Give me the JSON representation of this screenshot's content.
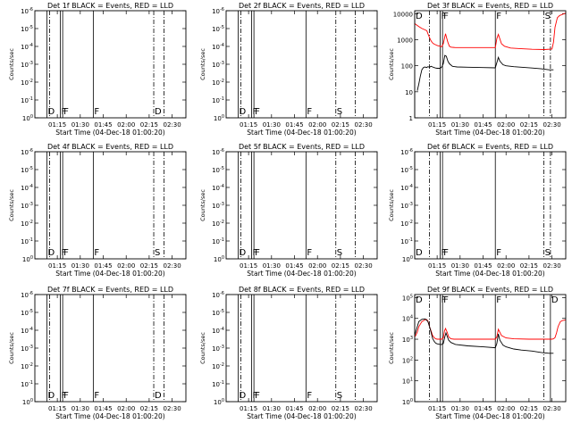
{
  "chart_data": [
    {
      "type": "line",
      "title": "Det 1f BLACK = Events, RED = LLD",
      "xlabel": "Start Time (04-Dec-18 01:00:20)",
      "ylabel": "Counts/sec",
      "log_y": true,
      "x_range": [
        "01:00:20",
        "02:39:00"
      ],
      "x_ticks": [
        "01:15",
        "01:30",
        "01:45",
        "02:00",
        "02:15",
        "02:30"
      ],
      "y_ticks": [
        "10^0",
        "10^-1",
        "10^-2",
        "10^-3",
        "10^-4",
        "10^-5",
        "10^-6"
      ],
      "grid": false,
      "series": [],
      "annotations": [
        {
          "label": "D",
          "x": "01:08:15",
          "line": "solid"
        },
        {
          "label": "",
          "x": "01:10:00",
          "line": "dashdot"
        },
        {
          "label": "F",
          "x": "01:17:00",
          "line": "solid"
        },
        {
          "label": "F",
          "x": "01:18:30",
          "line": "solid"
        },
        {
          "label": "F",
          "x": "01:38:30",
          "line": "solid"
        },
        {
          "label": "D",
          "x": "02:18:00",
          "line": "dashdot"
        },
        {
          "label": "",
          "x": "02:24:45",
          "line": "dashdot"
        }
      ]
    },
    {
      "type": "line",
      "title": "Det 2f BLACK = Events, RED = LLD",
      "xlabel": "Start Time (04-Dec-18 01:00:20)",
      "ylabel": "Counts/sec",
      "log_y": true,
      "x_range": [
        "01:00:20",
        "02:39:00"
      ],
      "x_ticks": [
        "01:15",
        "01:30",
        "01:45",
        "02:00",
        "02:15",
        "02:30"
      ],
      "y_ticks": [
        "10^0",
        "10^-1",
        "10^-2",
        "10^-3",
        "10^-4",
        "10^-5",
        "10^-6"
      ],
      "grid": false,
      "series": [],
      "annotations": [
        {
          "label": "D",
          "x": "01:08:15",
          "line": "solid"
        },
        {
          "label": "",
          "x": "01:10:00",
          "line": "dashdot"
        },
        {
          "label": "F",
          "x": "01:17:00",
          "line": "solid"
        },
        {
          "label": "F",
          "x": "01:18:30",
          "line": "solid"
        },
        {
          "label": "F",
          "x": "01:52:30",
          "line": "solid"
        },
        {
          "label": "S",
          "x": "02:12:00",
          "line": "dashdot"
        },
        {
          "label": "",
          "x": "02:24:45",
          "line": "dashdot"
        }
      ]
    },
    {
      "type": "line",
      "title": "Det 3f BLACK = Events, RED = LLD",
      "xlabel": "Start Time (04-Dec-18 01:00:20)",
      "ylabel": "Counts/sec",
      "log_y": true,
      "x_range": [
        "01:00:20",
        "02:39:00"
      ],
      "x_ticks": [
        "01:15",
        "01:30",
        "01:45",
        "02:00",
        "02:15",
        "02:30"
      ],
      "y_ticks": [
        "1",
        "10",
        "100",
        "1000",
        "10000"
      ],
      "y_range": [
        1,
        13000
      ],
      "grid": false,
      "series": [
        {
          "color": "#ff0000",
          "x": [
            "01:00:20",
            "01:01:30",
            "01:03:00",
            "01:05:00",
            "01:07:00",
            "01:08:15",
            "01:09:00",
            "01:10:00",
            "01:11:00",
            "01:12:00",
            "01:13:00",
            "01:14:00",
            "01:15:00",
            "01:16:00",
            "01:17:00",
            "01:18:00",
            "01:19:00",
            "01:20:00",
            "01:20:30",
            "01:21:00",
            "01:22:00",
            "01:23:00",
            "01:24:00",
            "01:25:00",
            "01:27:00",
            "01:30:00",
            "01:40:00",
            "01:50:00",
            "01:53:00",
            "01:54:00",
            "01:55:00",
            "01:57:00",
            "01:59:00",
            "02:03:00",
            "02:10:00",
            "02:17:00",
            "02:25:00",
            "02:30:00",
            "02:31:00",
            "02:32:00",
            "02:33:30",
            "02:35:00",
            "02:37:00",
            "02:39:00"
          ],
          "y": [
            4200,
            3700,
            3200,
            2700,
            2400,
            2200,
            1700,
            1200,
            900,
            750,
            680,
            640,
            600,
            580,
            560,
            540,
            700,
            1300,
            1700,
            1300,
            800,
            560,
            520,
            510,
            500,
            500,
            500,
            500,
            500,
            1100,
            1600,
            700,
            560,
            480,
            450,
            430,
            420,
            440,
            800,
            3000,
            7000,
            8500,
            9500,
            10500
          ]
        },
        {
          "color": "#000000",
          "x": [
            "01:02:00",
            "01:03:00",
            "01:04:00",
            "01:05:00",
            "01:06:00",
            "01:07:00",
            "01:08:00",
            "01:09:00",
            "01:10:00",
            "01:11:00",
            "01:12:00",
            "01:13:00",
            "01:14:00",
            "01:15:00",
            "01:16:00",
            "01:17:00",
            "01:18:00",
            "01:19:00",
            "01:20:00",
            "01:21:00",
            "01:22:00",
            "01:23:00",
            "01:25:00",
            "01:28:00",
            "01:35:00",
            "01:45:00",
            "01:53:00",
            "01:54:00",
            "01:55:00",
            "01:56:00",
            "01:58:00",
            "02:00:00",
            "02:05:00",
            "02:10:00",
            "02:17:00",
            "02:23:00",
            "02:28:00",
            "02:31:00"
          ],
          "y": [
            11,
            20,
            40,
            70,
            85,
            90,
            85,
            92,
            88,
            95,
            90,
            85,
            82,
            80,
            80,
            80,
            90,
            120,
            250,
            230,
            150,
            120,
            95,
            90,
            88,
            85,
            83,
            130,
            210,
            150,
            110,
            100,
            92,
            88,
            82,
            76,
            70,
            70
          ]
        }
      ],
      "annotations": [
        {
          "label": "D",
          "x": "01:00:20",
          "line": "solid"
        },
        {
          "label": "",
          "x": "01:10:00",
          "line": "dashdot"
        },
        {
          "label": "F",
          "x": "01:17:00",
          "line": "solid"
        },
        {
          "label": "F",
          "x": "01:18:30",
          "line": "solid"
        },
        {
          "label": "F",
          "x": "01:53:00",
          "line": "solid"
        },
        {
          "label": "S",
          "x": "02:24:45",
          "line": "dashdot"
        },
        {
          "label": "",
          "x": "02:29:00",
          "line": "dashdot"
        }
      ]
    },
    {
      "type": "line",
      "title": "Det 4f BLACK = Events, RED = LLD",
      "xlabel": "Start Time (04-Dec-18 01:00:20)",
      "ylabel": "Counts/sec",
      "log_y": true,
      "x_range": [
        "01:00:20",
        "02:39:00"
      ],
      "x_ticks": [
        "01:15",
        "01:30",
        "01:45",
        "02:00",
        "02:15",
        "02:30"
      ],
      "y_ticks": [
        "10^0",
        "10^-1",
        "10^-2",
        "10^-3",
        "10^-4",
        "10^-5",
        "10^-6"
      ],
      "grid": false,
      "series": [],
      "annotations": [
        {
          "label": "D",
          "x": "01:08:15",
          "line": "solid"
        },
        {
          "label": "",
          "x": "01:10:00",
          "line": "dashdot"
        },
        {
          "label": "F",
          "x": "01:17:00",
          "line": "solid"
        },
        {
          "label": "F",
          "x": "01:18:30",
          "line": "solid"
        },
        {
          "label": "F",
          "x": "01:38:30",
          "line": "solid"
        },
        {
          "label": "S",
          "x": "02:18:00",
          "line": "dashdot"
        },
        {
          "label": "",
          "x": "02:24:45",
          "line": "dashdot"
        }
      ]
    },
    {
      "type": "line",
      "title": "Det 5f BLACK = Events, RED = LLD",
      "xlabel": "Start Time (04-Dec-18 01:00:20)",
      "ylabel": "Counts/sec",
      "log_y": true,
      "x_range": [
        "01:00:20",
        "02:39:00"
      ],
      "x_ticks": [
        "01:15",
        "01:30",
        "01:45",
        "02:00",
        "02:15",
        "02:30"
      ],
      "y_ticks": [
        "10^0",
        "10^-1",
        "10^-2",
        "10^-3",
        "10^-4",
        "10^-5",
        "10^-6"
      ],
      "grid": false,
      "series": [],
      "annotations": [
        {
          "label": "D",
          "x": "01:08:15",
          "line": "solid"
        },
        {
          "label": "",
          "x": "01:10:00",
          "line": "dashdot"
        },
        {
          "label": "F",
          "x": "01:17:00",
          "line": "solid"
        },
        {
          "label": "F",
          "x": "01:18:30",
          "line": "solid"
        },
        {
          "label": "F",
          "x": "01:52:30",
          "line": "solid"
        },
        {
          "label": "S",
          "x": "02:12:00",
          "line": "dashdot"
        },
        {
          "label": "",
          "x": "02:24:45",
          "line": "dashdot"
        }
      ]
    },
    {
      "type": "line",
      "title": "Det 6f BLACK = Events, RED = LLD",
      "xlabel": "Start Time (04-Dec-18 01:00:20)",
      "ylabel": "Counts/sec",
      "log_y": true,
      "x_range": [
        "01:00:20",
        "02:39:00"
      ],
      "x_ticks": [
        "01:15",
        "01:30",
        "01:45",
        "02:00",
        "02:15",
        "02:30"
      ],
      "y_ticks": [
        "10^0",
        "10^-1",
        "10^-2",
        "10^-3",
        "10^-4",
        "10^-5",
        "10^-6"
      ],
      "grid": false,
      "series": [],
      "annotations": [
        {
          "label": "D",
          "x": "01:00:20",
          "line": "solid"
        },
        {
          "label": "",
          "x": "01:10:00",
          "line": "dashdot"
        },
        {
          "label": "F",
          "x": "01:17:00",
          "line": "solid"
        },
        {
          "label": "F",
          "x": "01:18:30",
          "line": "solid"
        },
        {
          "label": "F",
          "x": "01:53:00",
          "line": "solid"
        },
        {
          "label": "S",
          "x": "02:24:45",
          "line": "dashdot"
        },
        {
          "label": "",
          "x": "02:29:00",
          "line": "dashdot"
        }
      ]
    },
    {
      "type": "line",
      "title": "Det 7f BLACK = Events, RED = LLD",
      "xlabel": "Start Time (04-Dec-18 01:00:20)",
      "ylabel": "Counts/sec",
      "log_y": true,
      "x_range": [
        "01:00:20",
        "02:39:00"
      ],
      "x_ticks": [
        "01:15",
        "01:30",
        "01:45",
        "02:00",
        "02:15",
        "02:30"
      ],
      "y_ticks": [
        "10^0",
        "10^-1",
        "10^-2",
        "10^-3",
        "10^-4",
        "10^-5",
        "10^-6"
      ],
      "grid": false,
      "series": [],
      "annotations": [
        {
          "label": "D",
          "x": "01:08:15",
          "line": "solid"
        },
        {
          "label": "",
          "x": "01:10:00",
          "line": "dashdot"
        },
        {
          "label": "F",
          "x": "01:17:00",
          "line": "solid"
        },
        {
          "label": "F",
          "x": "01:18:30",
          "line": "solid"
        },
        {
          "label": "F",
          "x": "01:38:30",
          "line": "solid"
        },
        {
          "label": "D",
          "x": "02:18:00",
          "line": "dashdot"
        },
        {
          "label": "",
          "x": "02:24:45",
          "line": "dashdot"
        }
      ]
    },
    {
      "type": "line",
      "title": "Det 8f BLACK = Events, RED = LLD",
      "xlabel": "Start Time (04-Dec-18 01:00:20)",
      "ylabel": "Counts/sec",
      "log_y": true,
      "x_range": [
        "01:00:20",
        "02:39:00"
      ],
      "x_ticks": [
        "01:15",
        "01:30",
        "01:45",
        "02:00",
        "02:15",
        "02:30"
      ],
      "y_ticks": [
        "10^0",
        "10^-1",
        "10^-2",
        "10^-3",
        "10^-4",
        "10^-5",
        "10^-6"
      ],
      "grid": false,
      "series": [],
      "annotations": [
        {
          "label": "D",
          "x": "01:08:15",
          "line": "solid"
        },
        {
          "label": "",
          "x": "01:10:00",
          "line": "dashdot"
        },
        {
          "label": "F",
          "x": "01:17:00",
          "line": "solid"
        },
        {
          "label": "F",
          "x": "01:18:30",
          "line": "solid"
        },
        {
          "label": "F",
          "x": "01:52:30",
          "line": "solid"
        },
        {
          "label": "S",
          "x": "02:12:00",
          "line": "dashdot"
        },
        {
          "label": "",
          "x": "02:24:45",
          "line": "dashdot"
        }
      ]
    },
    {
      "type": "line",
      "title": "Det 9f BLACK = Events, RED = LLD",
      "xlabel": "Start Time (04-Dec-18 01:00:20)",
      "ylabel": "Counts/sec",
      "log_y": true,
      "x_range": [
        "01:00:20",
        "02:39:00"
      ],
      "x_ticks": [
        "01:15",
        "01:30",
        "01:45",
        "02:00",
        "02:15",
        "02:30"
      ],
      "y_ticks": [
        "10^0",
        "10^1",
        "10^2",
        "10^3",
        "10^4",
        "10^5"
      ],
      "y_range": [
        1,
        140000
      ],
      "grid": false,
      "series": [
        {
          "color": "#ff0000",
          "x": [
            "01:00:20",
            "01:01:00",
            "01:02:00",
            "01:03:00",
            "01:05:00",
            "01:07:00",
            "01:08:00",
            "01:09:00",
            "01:10:00",
            "01:11:00",
            "01:12:00",
            "01:13:00",
            "01:14:00",
            "01:15:00",
            "01:16:00",
            "01:17:00",
            "01:18:00",
            "01:19:00",
            "01:19:45",
            "01:20:30",
            "01:21:30",
            "01:22:30",
            "01:24:00",
            "01:26:00",
            "01:30:00",
            "01:40:00",
            "01:50:00",
            "01:53:00",
            "01:54:00",
            "01:55:00",
            "01:57:00",
            "02:00:00",
            "02:05:00",
            "02:15:00",
            "02:25:00",
            "02:30:00",
            "02:31:00",
            "02:32:00",
            "02:33:00",
            "02:34:00",
            "02:35:30",
            "02:37:00",
            "02:39:00"
          ],
          "y": [
            1300,
            1500,
            2200,
            4000,
            7000,
            8500,
            9000,
            7500,
            4000,
            2500,
            1500,
            1200,
            1050,
            1000,
            1000,
            1000,
            1000,
            1150,
            2500,
            3300,
            2200,
            1300,
            1050,
            1000,
            1000,
            1000,
            1000,
            1000,
            1300,
            3000,
            1500,
            1150,
            1050,
            1000,
            1000,
            1000,
            1050,
            1200,
            2000,
            4000,
            7000,
            8000,
            8500
          ]
        },
        {
          "color": "#000000",
          "x": [
            "01:00:20",
            "01:01:00",
            "01:02:00",
            "01:03:00",
            "01:05:00",
            "01:07:00",
            "01:08:00",
            "01:09:00",
            "01:10:00",
            "01:11:00",
            "01:12:00",
            "01:13:00",
            "01:14:00",
            "01:15:00",
            "01:16:00",
            "01:17:00",
            "01:18:00",
            "01:19:00",
            "01:20:00",
            "01:20:45",
            "01:21:30",
            "01:22:30",
            "01:24:00",
            "01:27:00",
            "01:35:00",
            "01:45:00",
            "01:53:00",
            "01:54:00",
            "01:55:00",
            "01:56:00",
            "01:58:00",
            "02:00:00",
            "02:05:00",
            "02:10:00",
            "02:17:00",
            "02:23:00",
            "02:28:00",
            "02:31:00"
          ],
          "y": [
            1500,
            2200,
            4000,
            7000,
            9000,
            9500,
            8500,
            7000,
            4000,
            2200,
            1100,
            800,
            650,
            600,
            580,
            560,
            560,
            620,
            1300,
            2000,
            1400,
            900,
            700,
            560,
            480,
            430,
            390,
            620,
            1800,
            900,
            520,
            430,
            340,
            300,
            270,
            230,
            210,
            210
          ]
        }
      ],
      "annotations": [
        {
          "label": "D",
          "x": "01:00:20",
          "line": "solid"
        },
        {
          "label": "",
          "x": "01:10:00",
          "line": "dashdot"
        },
        {
          "label": "F",
          "x": "01:17:00",
          "line": "solid"
        },
        {
          "label": "F",
          "x": "01:18:30",
          "line": "solid"
        },
        {
          "label": "F",
          "x": "01:53:00",
          "line": "solid"
        },
        {
          "label": "",
          "x": "02:24:45",
          "line": "dashdot"
        },
        {
          "label": "D",
          "x": "02:29:00",
          "line": "solid"
        }
      ]
    }
  ]
}
